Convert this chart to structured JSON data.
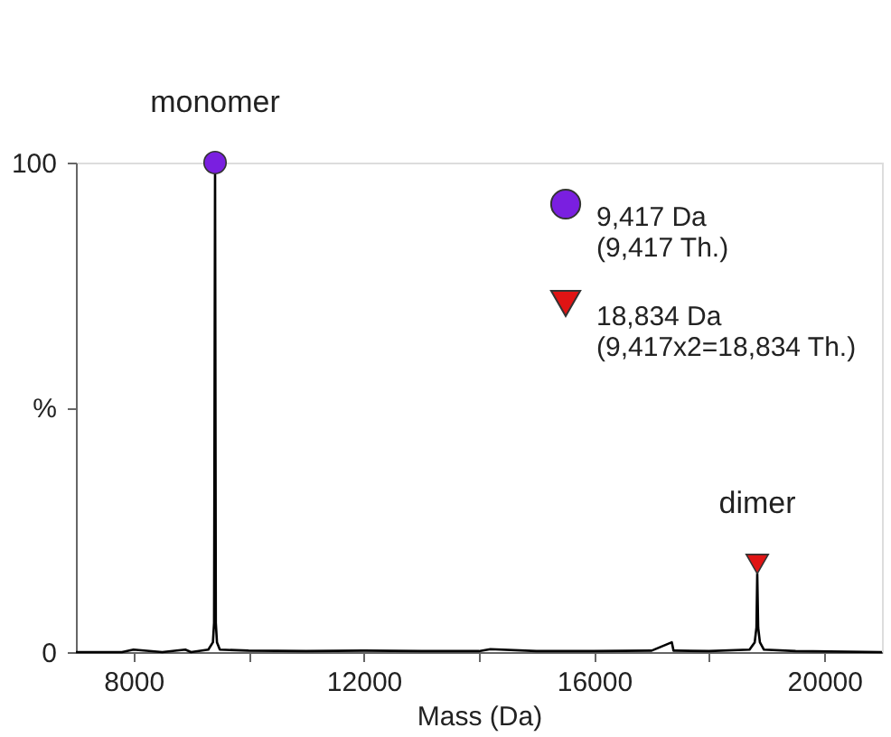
{
  "chart_data": {
    "type": "line",
    "xlabel": "Mass (Da)",
    "xlim": [
      7000,
      21000
    ],
    "xticks": [
      8000,
      {
        "value": 10000,
        "label": null
      },
      12000,
      {
        "value": 14000,
        "label": null
      },
      16000,
      {
        "value": 18000,
        "label": null
      },
      20000
    ],
    "ylim": [
      0,
      100
    ],
    "yticks": [
      0,
      {
        "value": 50,
        "label": "%"
      },
      100
    ],
    "grid": false,
    "legend": "top right",
    "series": [
      {
        "color": "#000000",
        "marker": "none",
        "line_style": "solid",
        "x": [
          7000,
          7800,
          8000,
          8500,
          8900,
          9000,
          9300,
          9380,
          9400,
          9417,
          9430,
          9450,
          9500,
          10000,
          11000,
          12000,
          13000,
          14000,
          14200,
          15000,
          16000,
          17000,
          17350,
          17380,
          17410,
          18000,
          18700,
          18790,
          18820,
          18834,
          18850,
          18880,
          18950,
          19500,
          21000
        ],
        "values": [
          0,
          0,
          0.5,
          0,
          0.5,
          0,
          0.5,
          2,
          6,
          100,
          6,
          2,
          0.5,
          0.3,
          0.2,
          0.3,
          0.2,
          0.2,
          0.6,
          0.2,
          0.2,
          0.3,
          2,
          0.3,
          0.3,
          0.2,
          0.5,
          2,
          5,
          16,
          5,
          2,
          0.5,
          0.2,
          0
        ]
      },
      {
        "type": "scatter",
        "name": "9,417 Da\n(9,417 Th.)",
        "color": "#7a1fe0",
        "marker": "circle",
        "x": [
          9417
        ],
        "values": [
          100
        ]
      },
      {
        "type": "scatter",
        "name": "18,834 Da\n(9,417x2=18,834 Th.)",
        "color": "#e01414",
        "marker": "triangle",
        "x": [
          18834
        ],
        "values": [
          18
        ]
      }
    ],
    "annotations": [
      {
        "text": "monomer",
        "x": 9417,
        "y": 100
      },
      {
        "text": "dimer",
        "x": 18834,
        "y": 18
      }
    ]
  }
}
